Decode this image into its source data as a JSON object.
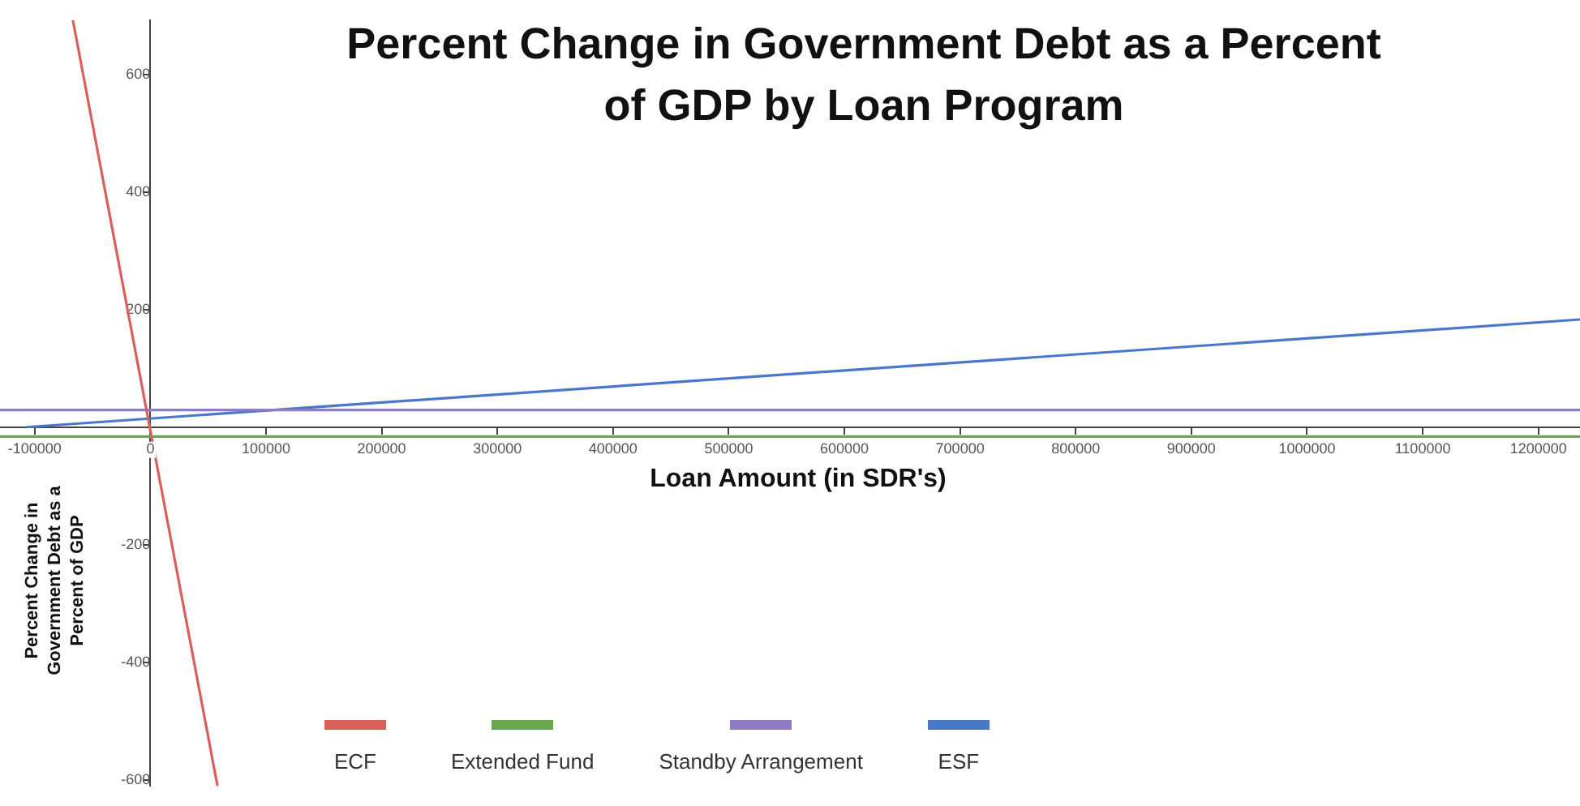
{
  "chart_data": {
    "type": "line",
    "title": "Percent Change in Government Debt as a Percent of GDP by Loan Program",
    "xlabel": "Loan Amount (in SDR's)",
    "ylabel": "Percent Change in Government Debt as a Percent of GDP",
    "xlim": [
      -130000,
      1236000
    ],
    "ylim": [
      -610,
      692
    ],
    "xticks": [
      -100000,
      0,
      100000,
      200000,
      300000,
      400000,
      500000,
      600000,
      700000,
      800000,
      900000,
      1000000,
      1100000,
      1200000
    ],
    "yticks": [
      -600,
      -400,
      -200,
      200,
      400,
      600
    ],
    "grid": false,
    "legend": "bottom",
    "marker": "none",
    "line_style": "solid",
    "series": [
      {
        "name": "ECF",
        "color": "#d9605a",
        "x": [
          -67000,
          58000
        ],
        "values": [
          692,
          -610
        ]
      },
      {
        "name": "Extended Fund",
        "color": "#6aa84f",
        "x": [
          -130000,
          1236000
        ],
        "values": [
          -16,
          -16
        ]
      },
      {
        "name": "Standby Arrangement",
        "color": "#8e7cc3",
        "x": [
          -130000,
          1236000
        ],
        "values": [
          29,
          29
        ]
      },
      {
        "name": "ESF",
        "color": "#4a78c8",
        "x": [
          -107000,
          1236000
        ],
        "values": [
          0,
          183
        ]
      }
    ]
  }
}
